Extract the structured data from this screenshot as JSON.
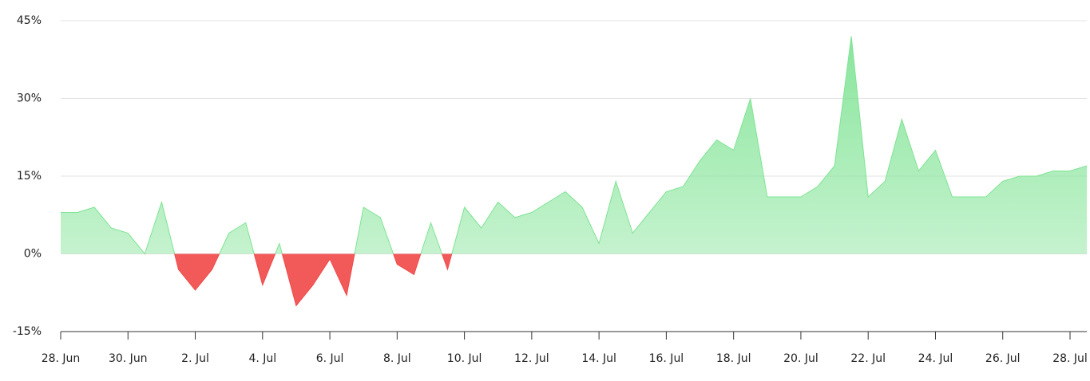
{
  "chart_data": {
    "type": "area",
    "categories": [
      "28. Jun",
      null,
      null,
      null,
      "30. Jun",
      null,
      null,
      null,
      "2. Jul",
      null,
      null,
      null,
      "4. Jul",
      null,
      null,
      null,
      "6. Jul",
      null,
      null,
      null,
      "8. Jul",
      null,
      null,
      null,
      "10. Jul",
      null,
      null,
      null,
      "12. Jul",
      null,
      null,
      null,
      "14. Jul",
      null,
      null,
      null,
      "16. Jul",
      null,
      null,
      null,
      "18. Jul",
      null,
      null,
      null,
      "20. Jul",
      null,
      null,
      null,
      "22. Jul",
      null,
      null,
      null,
      "24. Jul",
      null,
      null,
      null,
      "26. Jul",
      null,
      null,
      null,
      "28. Jul",
      null
    ],
    "values": [
      8,
      8,
      9,
      5,
      4,
      0,
      10,
      -3,
      -7,
      -3,
      4,
      6,
      -6,
      2,
      -10,
      -6,
      -1,
      -8,
      9,
      7,
      -2,
      -4,
      6,
      -3,
      9,
      5,
      10,
      7,
      8,
      10,
      12,
      9,
      2,
      14,
      4,
      8,
      12,
      13,
      18,
      22,
      20,
      30,
      11,
      11,
      11,
      13,
      17,
      42,
      11,
      14,
      26,
      16,
      20,
      11,
      11,
      11,
      14,
      15,
      15,
      16,
      16,
      17
    ],
    "positive_color": "#7ee393",
    "negative_color": "#f04848",
    "ylim": [
      -15,
      45
    ],
    "yticks": [
      {
        "value": -15,
        "label": "-15%"
      },
      {
        "value": 0,
        "label": "0%"
      },
      {
        "value": 15,
        "label": "15%"
      },
      {
        "value": 30,
        "label": "30%"
      },
      {
        "value": 45,
        "label": "45%"
      }
    ],
    "grid": true
  }
}
